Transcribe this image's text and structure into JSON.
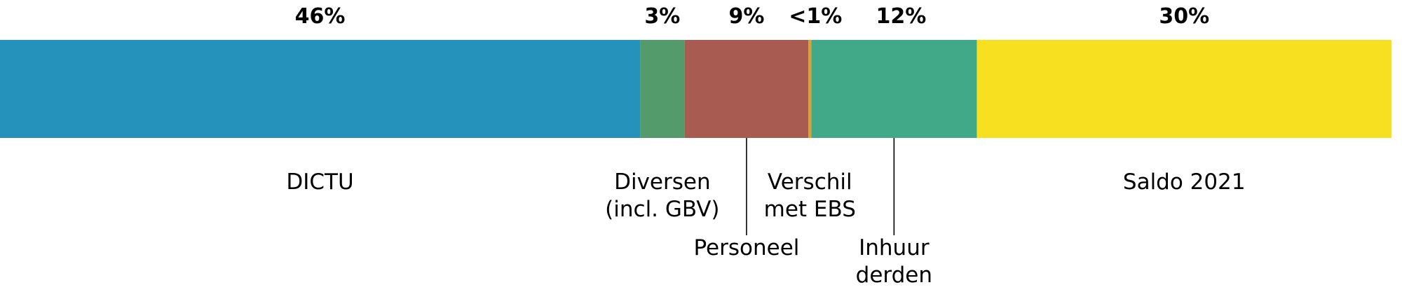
{
  "chart_data": {
    "type": "bar",
    "orientation": "horizontal",
    "stacked": true,
    "total_percent": 100,
    "grid": false,
    "segments": [
      {
        "category": "DICTU",
        "value": 46,
        "value_label": "46%",
        "color": "#2592bb"
      },
      {
        "category": "Diversen (incl. GBV)",
        "value": 3.2,
        "value_label": "3%",
        "color": "#539b6a"
      },
      {
        "category": "Personeel",
        "value": 8.9,
        "value_label": "9%",
        "color": "#a85b51"
      },
      {
        "category": "Verschil met EBS",
        "value": 0.2,
        "value_label": "<1%",
        "color": "#e0a126"
      },
      {
        "category": "Inhuur derden",
        "value": 11.9,
        "value_label": "12%",
        "color": "#41a888"
      },
      {
        "category": "Saldo 2021",
        "value": 29.8,
        "value_label": "30%",
        "color": "#f6e01f"
      }
    ],
    "category_labels": [
      {
        "segment": 0,
        "lines": [
          "DICTU"
        ]
      },
      {
        "segment": 1,
        "lines": [
          "Diversen",
          "(incl. GBV)"
        ]
      },
      {
        "segment": 2,
        "lines": [
          "Personeel"
        ],
        "leader": true
      },
      {
        "segment": 3,
        "lines": [
          "Verschil",
          "met EBS"
        ]
      },
      {
        "segment": 4,
        "lines": [
          "Inhuur",
          "derden"
        ],
        "leader": true
      },
      {
        "segment": 5,
        "lines": [
          "Saldo 2021"
        ]
      }
    ]
  }
}
